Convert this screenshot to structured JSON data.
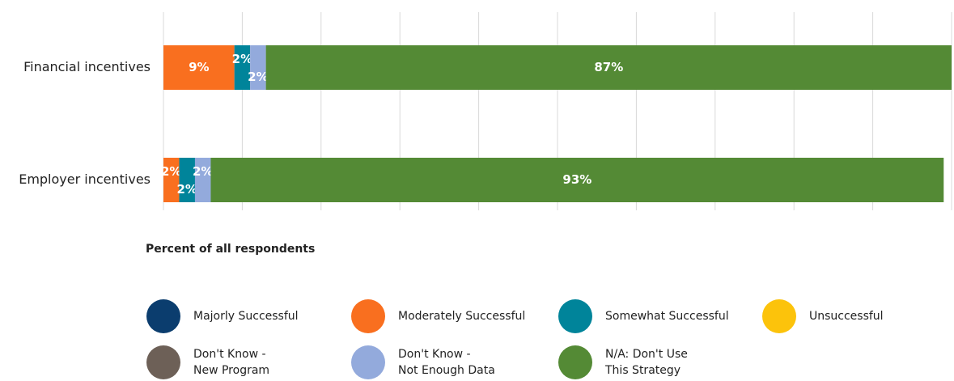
{
  "chart_data": {
    "type": "bar",
    "orientation": "horizontal",
    "stacked": true,
    "categories": [
      "Financial incentives",
      "Employer incentives"
    ],
    "x_label": "Percent of all respondents",
    "xlim": [
      0,
      100
    ],
    "xticks": [
      0,
      10,
      20,
      30,
      40,
      50,
      60,
      70,
      80,
      90,
      100
    ],
    "grid": true,
    "series": [
      {
        "name": "Majorly Successful",
        "color": "#0b3d6e",
        "values": [
          0,
          0
        ],
        "value_labels": [
          null,
          null
        ]
      },
      {
        "name": "Moderately Successful",
        "color": "#f96f1f",
        "values": [
          9,
          2
        ],
        "value_labels": [
          "9%",
          "2%"
        ]
      },
      {
        "name": "Somewhat Successful",
        "color": "#00849a",
        "values": [
          2,
          2
        ],
        "value_labels": [
          "2%",
          "2%"
        ]
      },
      {
        "name": "Unsuccessful",
        "color": "#fcc30b",
        "values": [
          0,
          0
        ],
        "value_labels": [
          null,
          null
        ]
      },
      {
        "name": "Don't Know -\nNew Program",
        "color": "#6d6057",
        "values": [
          0,
          0
        ],
        "value_labels": [
          null,
          null
        ]
      },
      {
        "name": "Don't Know -\nNot Enough Data",
        "color": "#93aadc",
        "values": [
          2,
          2
        ],
        "value_labels": [
          "2%",
          "2%"
        ]
      },
      {
        "name": "N/A: Don't Use\nThis Strategy",
        "color": "#548a35",
        "values": [
          87,
          93
        ],
        "value_labels": [
          "87%",
          "93%"
        ]
      }
    ]
  }
}
